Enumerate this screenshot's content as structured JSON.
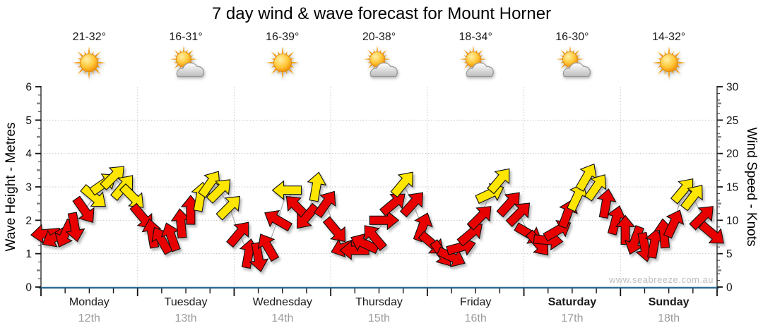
{
  "title": "7 day wind & wave forecast for Mount Horner",
  "watermark": "www.seabreeze.com.au",
  "axes": {
    "left": {
      "label": "Wave Height - Metres",
      "ticks": [
        0,
        1,
        2,
        3,
        4,
        5,
        6
      ],
      "max": 6
    },
    "right": {
      "label": "Wind Speed - Knots",
      "ticks": [
        0,
        5,
        10,
        15,
        20,
        25,
        30
      ],
      "max": 30
    }
  },
  "colors": {
    "arrow_red": "#E80000",
    "arrow_yellow": "#FFE600",
    "arrow_outline": "#111111",
    "baseline_blue": "#2D6E93",
    "grid_gray": "#C9C9C9",
    "trend_line": "#A8A8A8",
    "date_gray": "#9B9B9B"
  },
  "chart_data": {
    "type": "scatter",
    "subtype": "wind-direction-arrows",
    "title": "7 day wind & wave forecast for Mount Horner",
    "ylabel_left": "Wave Height - Metres",
    "ylabel_right": "Wind Speed - Knots",
    "ylim_left": [
      0,
      6
    ],
    "ylim_right": [
      0,
      30
    ],
    "grid": "dotted horizontal every 5 knots (1 m), dotted vertical at day boundaries",
    "legend": "arrow vertical position = wind speed in knots; arrow rotation = direction wind points toward (0 = up/N, 90 = right/E); red = lighter wind, yellow = stronger wind",
    "days": [
      {
        "name": "Monday",
        "date": "12th",
        "temp": "21-32°",
        "icon": "sunny",
        "bold": false,
        "arrows": [
          {
            "kn": 8.0,
            "dir": 265,
            "color": "red"
          },
          {
            "kn": 7.5,
            "dir": 240,
            "color": "red"
          },
          {
            "kn": 8.0,
            "dir": 205,
            "color": "red"
          },
          {
            "kn": 9.0,
            "dir": 170,
            "color": "red"
          },
          {
            "kn": 11.5,
            "dir": 145,
            "color": "red"
          },
          {
            "kn": 13.5,
            "dir": 130,
            "color": "yellow"
          },
          {
            "kn": 15.5,
            "dir": 55,
            "color": "yellow"
          },
          {
            "kn": 16.5,
            "dir": 45,
            "color": "yellow"
          },
          {
            "kn": 15.0,
            "dir": 40,
            "color": "yellow"
          },
          {
            "kn": 13.5,
            "dir": 135,
            "color": "yellow"
          }
        ]
      },
      {
        "name": "Tuesday",
        "date": "13th",
        "temp": "16-31°",
        "icon": "partly-cloudy",
        "bold": false,
        "arrows": [
          {
            "kn": 10.5,
            "dir": 140,
            "color": "red"
          },
          {
            "kn": 8.0,
            "dir": 350,
            "color": "red"
          },
          {
            "kn": 7.0,
            "dir": 330,
            "color": "red"
          },
          {
            "kn": 7.5,
            "dir": 340,
            "color": "red"
          },
          {
            "kn": 9.5,
            "dir": 355,
            "color": "red"
          },
          {
            "kn": 11.5,
            "dir": 0,
            "color": "red"
          },
          {
            "kn": 13.5,
            "dir": 10,
            "color": "yellow"
          },
          {
            "kn": 15.5,
            "dir": 35,
            "color": "yellow"
          },
          {
            "kn": 14.5,
            "dir": 45,
            "color": "yellow"
          },
          {
            "kn": 12.0,
            "dir": 45,
            "color": "yellow"
          }
        ]
      },
      {
        "name": "Wednesday",
        "date": "14th",
        "temp": "16-39°",
        "icon": "sunny",
        "bold": false,
        "arrows": [
          {
            "kn": 8.0,
            "dir": 40,
            "color": "red"
          },
          {
            "kn": 5.0,
            "dir": 10,
            "color": "red"
          },
          {
            "kn": 4.5,
            "dir": 170,
            "color": "red"
          },
          {
            "kn": 6.0,
            "dir": 330,
            "color": "red"
          },
          {
            "kn": 10.0,
            "dir": 300,
            "color": "red"
          },
          {
            "kn": 14.5,
            "dir": 270,
            "color": "yellow"
          },
          {
            "kn": 12.0,
            "dir": 315,
            "color": "red"
          },
          {
            "kn": 10.5,
            "dir": 220,
            "color": "red"
          },
          {
            "kn": 15.0,
            "dir": 10,
            "color": "yellow"
          },
          {
            "kn": 12.5,
            "dir": 35,
            "color": "red"
          }
        ]
      },
      {
        "name": "Thursday",
        "date": "15th",
        "temp": "20-38°",
        "icon": "partly-cloudy",
        "bold": false,
        "arrows": [
          {
            "kn": 8.5,
            "dir": 140,
            "color": "red"
          },
          {
            "kn": 6.0,
            "dir": 250,
            "color": "red"
          },
          {
            "kn": 5.5,
            "dir": 270,
            "color": "red"
          },
          {
            "kn": 6.5,
            "dir": 295,
            "color": "red"
          },
          {
            "kn": 7.5,
            "dir": 320,
            "color": "red"
          },
          {
            "kn": 10.0,
            "dir": 90,
            "color": "red"
          },
          {
            "kn": 12.5,
            "dir": 50,
            "color": "red"
          },
          {
            "kn": 15.5,
            "dir": 40,
            "color": "yellow"
          },
          {
            "kn": 12.5,
            "dir": 42,
            "color": "red"
          },
          {
            "kn": 9.0,
            "dir": 20,
            "color": "red"
          }
        ]
      },
      {
        "name": "Friday",
        "date": "16th",
        "temp": "18-34°",
        "icon": "partly-cloudy",
        "bold": false,
        "arrows": [
          {
            "kn": 6.5,
            "dir": 130,
            "color": "red"
          },
          {
            "kn": 5.0,
            "dir": 145,
            "color": "red"
          },
          {
            "kn": 4.5,
            "dir": 115,
            "color": "red"
          },
          {
            "kn": 6.0,
            "dir": 75,
            "color": "red"
          },
          {
            "kn": 8.0,
            "dir": 50,
            "color": "red"
          },
          {
            "kn": 10.5,
            "dir": 45,
            "color": "red"
          },
          {
            "kn": 14.0,
            "dir": 65,
            "color": "yellow"
          },
          {
            "kn": 16.0,
            "dir": 40,
            "color": "yellow"
          },
          {
            "kn": 12.5,
            "dir": 42,
            "color": "red"
          },
          {
            "kn": 11.0,
            "dir": 45,
            "color": "red"
          }
        ]
      },
      {
        "name": "Saturday",
        "date": "17th",
        "temp": "16-30°",
        "icon": "partly-cloudy",
        "bold": true,
        "arrows": [
          {
            "kn": 8.0,
            "dir": 120,
            "color": "red"
          },
          {
            "kn": 6.5,
            "dir": 140,
            "color": "red"
          },
          {
            "kn": 7.0,
            "dir": 95,
            "color": "red"
          },
          {
            "kn": 8.5,
            "dir": 60,
            "color": "red"
          },
          {
            "kn": 11.0,
            "dir": 20,
            "color": "red"
          },
          {
            "kn": 13.5,
            "dir": 25,
            "color": "yellow"
          },
          {
            "kn": 16.5,
            "dir": 30,
            "color": "yellow"
          },
          {
            "kn": 15.0,
            "dir": 35,
            "color": "yellow"
          },
          {
            "kn": 12.5,
            "dir": 10,
            "color": "red"
          },
          {
            "kn": 10.0,
            "dir": 15,
            "color": "red"
          }
        ]
      },
      {
        "name": "Sunday",
        "date": "18th",
        "temp": "14-32°",
        "icon": "sunny",
        "bold": true,
        "arrows": [
          {
            "kn": 8.5,
            "dir": 0,
            "color": "red"
          },
          {
            "kn": 7.0,
            "dir": 200,
            "color": "red"
          },
          {
            "kn": 6.0,
            "dir": 170,
            "color": "red"
          },
          {
            "kn": 6.5,
            "dir": 10,
            "color": "red"
          },
          {
            "kn": 8.0,
            "dir": 355,
            "color": "red"
          },
          {
            "kn": 9.5,
            "dir": 25,
            "color": "red"
          },
          {
            "kn": 14.5,
            "dir": 40,
            "color": "yellow"
          },
          {
            "kn": 13.5,
            "dir": 38,
            "color": "yellow"
          },
          {
            "kn": 10.5,
            "dir": 45,
            "color": "red"
          },
          {
            "kn": 8.0,
            "dir": 130,
            "color": "red"
          }
        ]
      }
    ]
  }
}
